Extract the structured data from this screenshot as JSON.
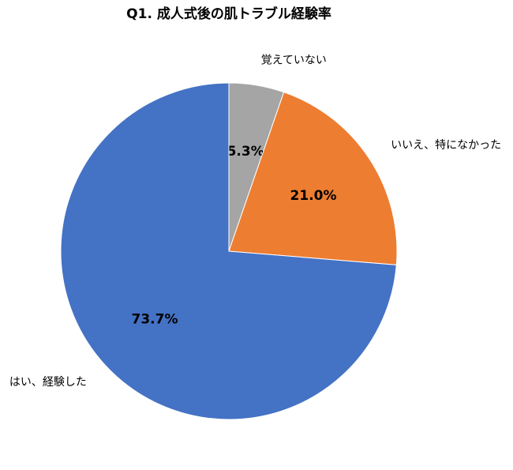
{
  "chart_data": {
    "type": "pie",
    "title": "Q1. 成人式後の肌トラブル経験率",
    "categories": [
      "覚えていない",
      "いいえ、特になかった",
      "はい、経験した"
    ],
    "values": [
      5.3,
      21.0,
      73.7
    ],
    "value_labels": [
      "5.3%",
      "21.0%",
      "73.7%"
    ],
    "colors": [
      "#a5a5a5",
      "#ed7d31",
      "#4472c4"
    ]
  }
}
